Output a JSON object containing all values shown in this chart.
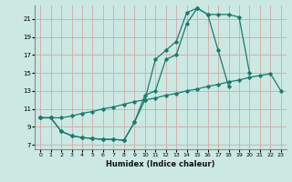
{
  "xlabel": "Humidex (Indice chaleur)",
  "bg_color": "#cce8e2",
  "grid_color": "#d4a8a8",
  "line_color": "#1a7a6e",
  "xlim": [
    -0.5,
    23.5
  ],
  "ylim": [
    6.5,
    22.5
  ],
  "yticks": [
    7,
    9,
    11,
    13,
    15,
    17,
    19,
    21
  ],
  "xticks": [
    0,
    1,
    2,
    3,
    4,
    5,
    6,
    7,
    8,
    9,
    10,
    11,
    12,
    13,
    14,
    15,
    16,
    17,
    18,
    19,
    20,
    21,
    22,
    23
  ],
  "line1_x": [
    0,
    1,
    2,
    3,
    4,
    5,
    6,
    7,
    8,
    9,
    10,
    11,
    12,
    13,
    14,
    15,
    16,
    17,
    18,
    19,
    20,
    21,
    22,
    23
  ],
  "line1_y": [
    10.0,
    10.0,
    10.0,
    10.2,
    10.5,
    10.7,
    11.0,
    11.2,
    11.5,
    11.8,
    12.0,
    12.2,
    12.5,
    12.7,
    13.0,
    13.2,
    13.5,
    13.7,
    14.0,
    14.2,
    14.5,
    14.7,
    14.9,
    13.0
  ],
  "line2_x": [
    0,
    1,
    2,
    3,
    4,
    5,
    6,
    7,
    8,
    9,
    10,
    11,
    12,
    13,
    14,
    15,
    16,
    17,
    18,
    19,
    20
  ],
  "line2_y": [
    10.0,
    10.0,
    8.5,
    8.0,
    7.8,
    7.7,
    7.6,
    7.6,
    7.5,
    9.5,
    12.5,
    13.0,
    16.5,
    17.0,
    20.5,
    22.2,
    21.5,
    21.5,
    21.5,
    21.2,
    15.0
  ],
  "line3_x": [
    0,
    1,
    2,
    3,
    4,
    5,
    6,
    7,
    8,
    9,
    10,
    11,
    12,
    13,
    14,
    15,
    16,
    17,
    18
  ],
  "line3_y": [
    10.0,
    10.0,
    8.5,
    8.0,
    7.8,
    7.7,
    7.6,
    7.6,
    7.5,
    9.5,
    12.0,
    16.5,
    17.5,
    18.5,
    21.7,
    22.2,
    21.5,
    17.5,
    13.5
  ]
}
